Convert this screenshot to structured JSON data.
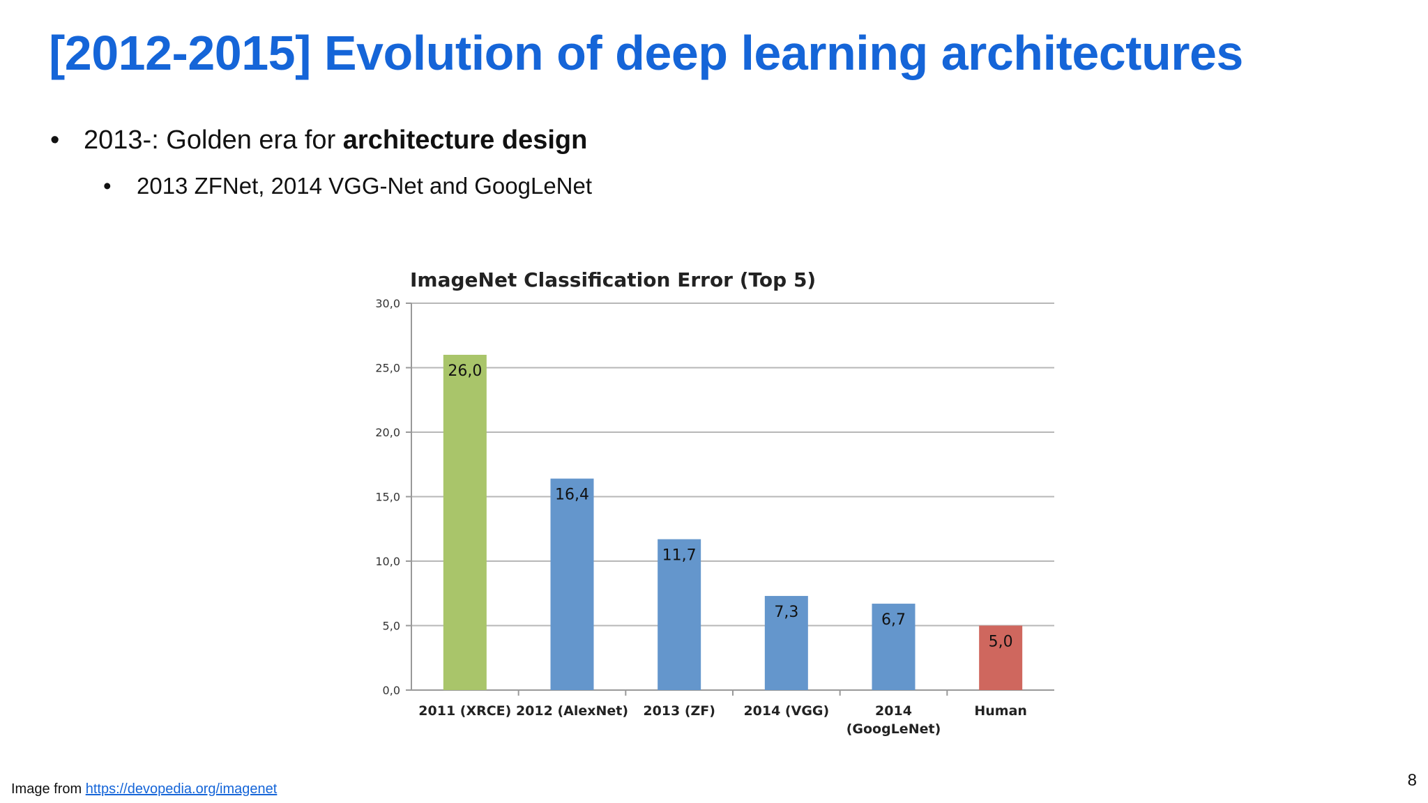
{
  "slide": {
    "title": "[2012-2015] Evolution of deep learning architectures",
    "bullet1_prefix": "2013-: Golden era for ",
    "bullet1_bold": "architecture design",
    "bullet2": "2013 ZFNet, 2014 VGG-Net and GoogLeNet",
    "source_prefix": "Image from ",
    "source_link": "https://devopedia.org/imagenet",
    "page_number": "8"
  },
  "chart_data": {
    "type": "bar",
    "title": "ImageNet Classification Error (Top 5)",
    "xlabel": "",
    "ylabel": "",
    "categories": [
      "2011 (XRCE)",
      "2012 (AlexNet)",
      "2013 (ZF)",
      "2014 (VGG)",
      "2014\n(GoogLeNet)",
      "Human"
    ],
    "values": [
      26.0,
      16.4,
      11.7,
      7.3,
      6.7,
      5.0
    ],
    "value_labels": [
      "26,0",
      "16,4",
      "11,7",
      "7,3",
      "6,7",
      "5,0"
    ],
    "ylim": [
      0,
      30
    ],
    "yticks": [
      0,
      5,
      10,
      15,
      20,
      25,
      30
    ],
    "ytick_labels": [
      "0,0",
      "5,0",
      "10,0",
      "15,0",
      "20,0",
      "25,0",
      "30,0"
    ],
    "bar_colors": [
      "#a9c56a",
      "#6496cc",
      "#6496cc",
      "#6496cc",
      "#6496cc",
      "#cf675e"
    ],
    "grid": true,
    "legend": "none"
  }
}
